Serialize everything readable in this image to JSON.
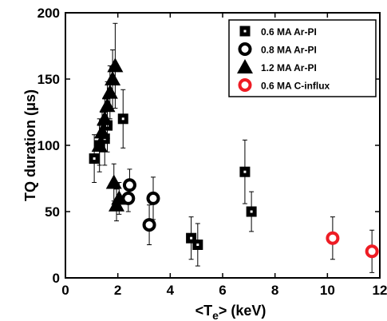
{
  "chart_data": {
    "type": "scatter",
    "xlabel": "<Te> (keV)",
    "xlabel_parts": {
      "pre": "<T",
      "sub": "e",
      "post": "> (keV)"
    },
    "ylabel": "TQ duration  (μs)",
    "xlim": [
      0,
      12
    ],
    "ylim": [
      0,
      200
    ],
    "xticks": [
      0,
      2,
      4,
      6,
      8,
      10,
      12
    ],
    "yticks": [
      0,
      50,
      100,
      150,
      200
    ],
    "grid": false,
    "legend_position": "top-right",
    "series": [
      {
        "name": "0.6 MA Ar-PI",
        "marker": "square",
        "color": "#000000",
        "points": [
          {
            "x": 1.1,
            "y": 90,
            "err": 18
          },
          {
            "x": 1.3,
            "y": 100,
            "err": 20
          },
          {
            "x": 1.5,
            "y": 105,
            "err": 20
          },
          {
            "x": 1.6,
            "y": 115,
            "err": 20
          },
          {
            "x": 2.2,
            "y": 120,
            "err": 22
          },
          {
            "x": 4.8,
            "y": 30,
            "err": 16
          },
          {
            "x": 5.05,
            "y": 25,
            "err": 16
          },
          {
            "x": 6.85,
            "y": 80,
            "err": 24
          },
          {
            "x": 7.1,
            "y": 50,
            "err": 15
          }
        ]
      },
      {
        "name": "0.8 MA Ar-PI",
        "marker": "circle",
        "color": "#000000",
        "points": [
          {
            "x": 2.4,
            "y": 60,
            "err": 10
          },
          {
            "x": 2.45,
            "y": 70,
            "err": 12
          },
          {
            "x": 3.2,
            "y": 40,
            "err": 15
          },
          {
            "x": 3.35,
            "y": 60,
            "err": 16
          }
        ]
      },
      {
        "name": "1.2 MA Ar-PI",
        "marker": "triangle",
        "color": "#000000",
        "points": [
          {
            "x": 1.3,
            "y": 100,
            "err": 15
          },
          {
            "x": 1.4,
            "y": 110,
            "err": 15
          },
          {
            "x": 1.5,
            "y": 120,
            "err": 15
          },
          {
            "x": 1.6,
            "y": 130,
            "err": 18
          },
          {
            "x": 1.7,
            "y": 140,
            "err": 20
          },
          {
            "x": 1.8,
            "y": 150,
            "err": 22
          },
          {
            "x": 1.9,
            "y": 160,
            "err": 32
          },
          {
            "x": 1.85,
            "y": 72,
            "err": 14
          },
          {
            "x": 1.95,
            "y": 55,
            "err": 12
          },
          {
            "x": 2.05,
            "y": 60,
            "err": 12
          }
        ]
      },
      {
        "name": "0.6 MA C-influx",
        "marker": "circle",
        "color": "#ee1c24",
        "points": [
          {
            "x": 10.2,
            "y": 30,
            "err": 16
          },
          {
            "x": 11.7,
            "y": 20,
            "err": 16
          }
        ]
      }
    ]
  }
}
